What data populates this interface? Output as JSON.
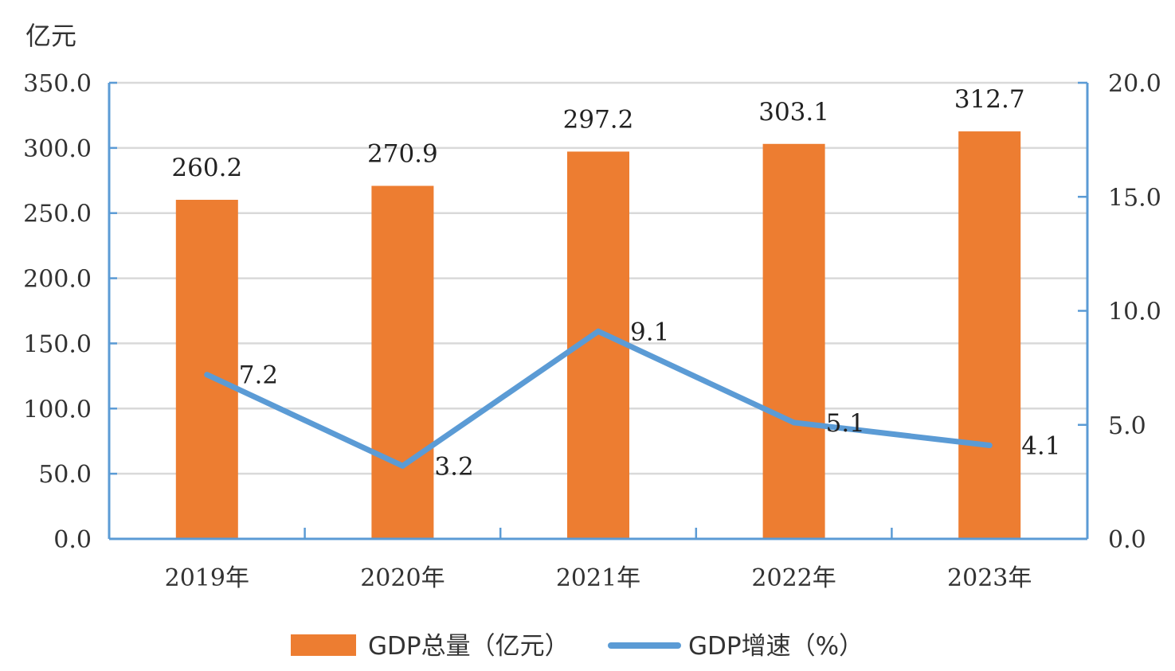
{
  "chart_data": {
    "type": "bar",
    "categories": [
      "2019年",
      "2020年",
      "2021年",
      "2022年",
      "2023年"
    ],
    "series": [
      {
        "name": "GDP总量（亿元）",
        "type": "bar",
        "axis": "left",
        "color": "#ED7D31",
        "values": [
          260.2,
          270.9,
          297.2,
          303.1,
          312.7
        ]
      },
      {
        "name": "GDP增速（%）",
        "type": "line",
        "axis": "right",
        "color": "#5B9BD5",
        "values": [
          7.2,
          3.2,
          9.1,
          5.1,
          4.1
        ]
      }
    ],
    "y_left": {
      "label": "亿元",
      "min": 0,
      "max": 350,
      "step": 50,
      "ticks": [
        "0.0",
        "50.0",
        "100.0",
        "150.0",
        "200.0",
        "250.0",
        "300.0",
        "350.0"
      ]
    },
    "y_right": {
      "label": "",
      "min": 0,
      "max": 20,
      "step": 5,
      "ticks": [
        "0.0",
        "5.0",
        "10.0",
        "15.0",
        "20.0"
      ]
    },
    "bar_labels": [
      "260.2",
      "270.9",
      "297.2",
      "303.1",
      "312.7"
    ],
    "line_labels": [
      "7.2",
      "3.2",
      "9.1",
      "5.1",
      "4.1"
    ],
    "grid": true,
    "axis_color": "#5B9BD5",
    "legend": {
      "position": "bottom",
      "items": [
        "GDP总量（亿元）",
        "GDP增速（%）"
      ]
    }
  }
}
